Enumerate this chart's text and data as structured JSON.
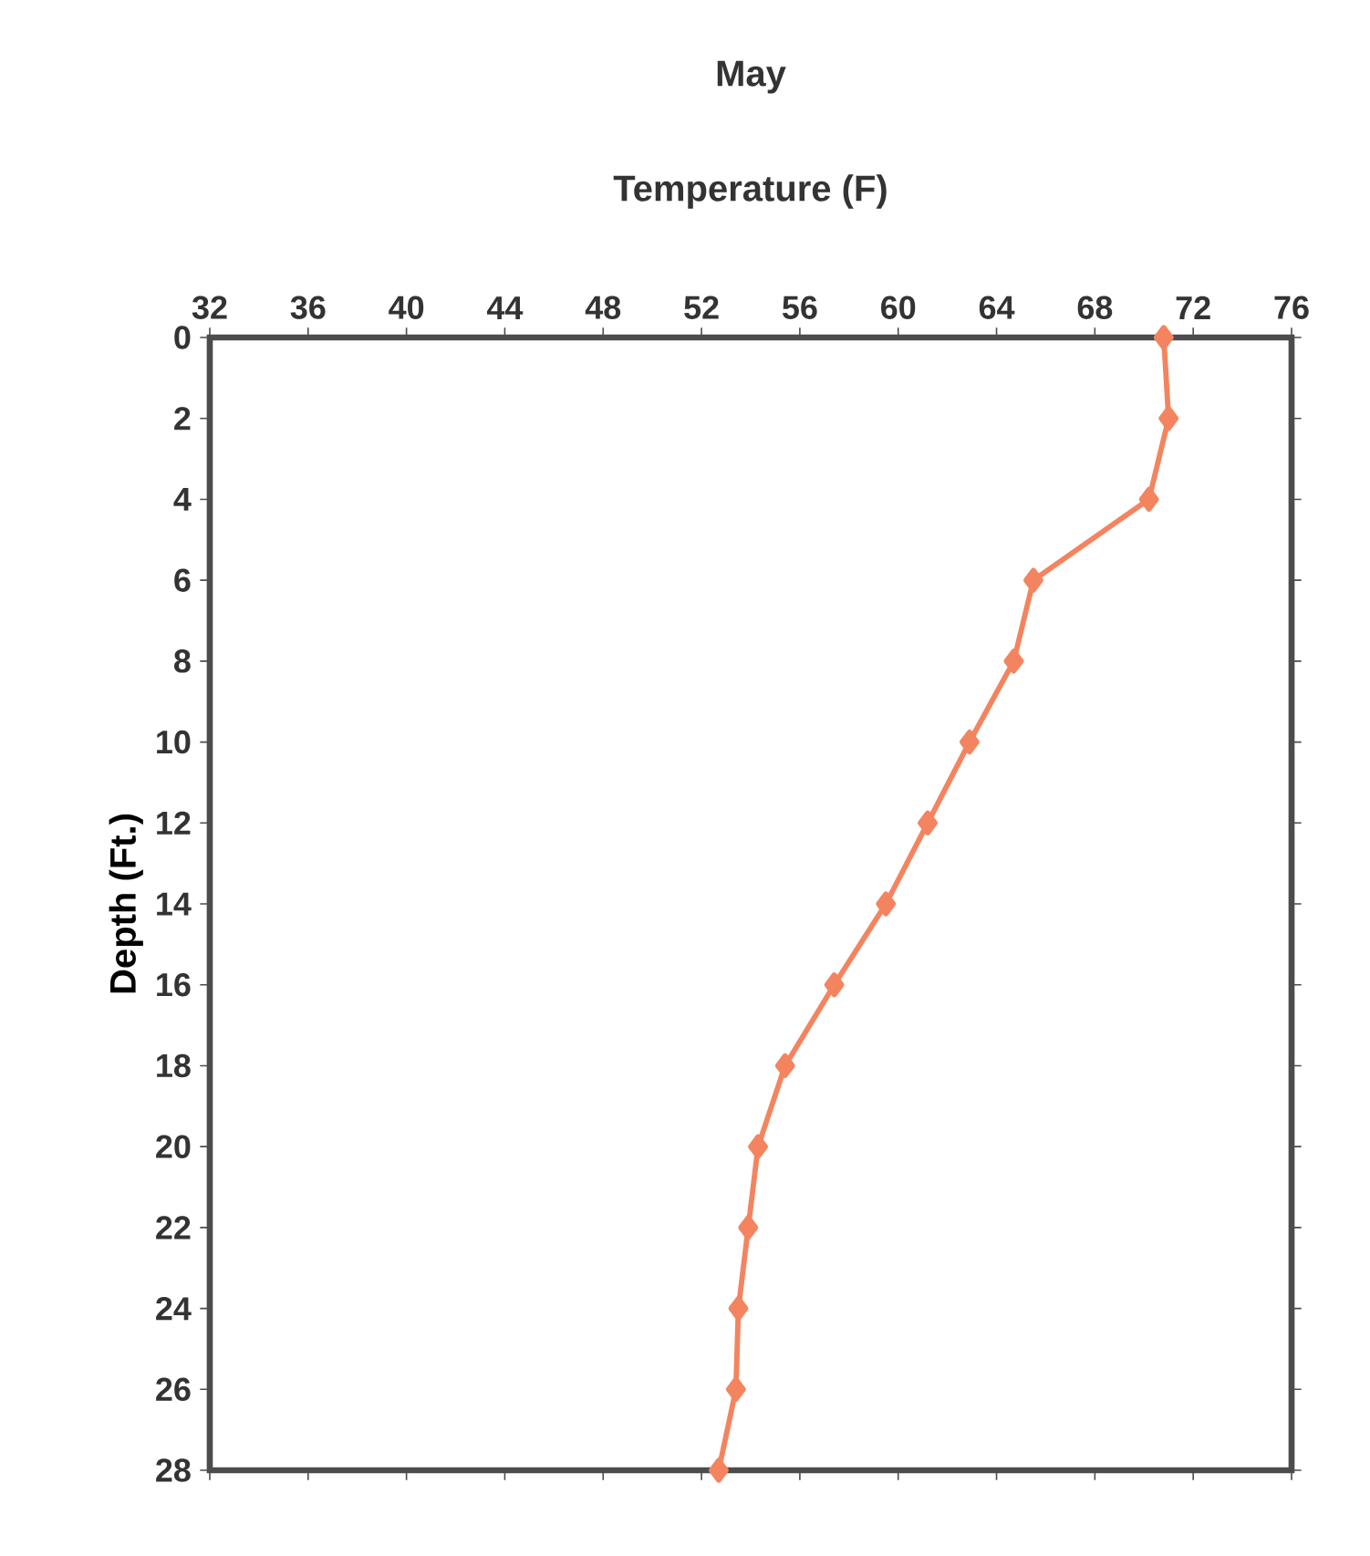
{
  "chart_data": {
    "type": "line",
    "title": "May",
    "xlabel": "Temperature (F)",
    "ylabel": "Depth (Ft.)",
    "x": [
      70.8,
      71.0,
      70.2,
      65.5,
      64.7,
      62.9,
      61.2,
      59.5,
      57.4,
      55.4,
      54.3,
      53.9,
      53.5,
      53.4,
      52.7
    ],
    "values": [
      0,
      2,
      4,
      6,
      8,
      10,
      12,
      14,
      16,
      18,
      20,
      22,
      24,
      26,
      28
    ],
    "color": "#f4845f",
    "marker": "diamond",
    "line_style": "solid",
    "grid": false,
    "xlim": [
      32,
      76
    ],
    "xticks": [
      32,
      36,
      40,
      44,
      48,
      52,
      56,
      60,
      64,
      68,
      72,
      76
    ],
    "ylim": [
      28,
      0
    ],
    "yticks": [
      0,
      2,
      4,
      6,
      8,
      10,
      12,
      14,
      16,
      18,
      20,
      22,
      24,
      26,
      28
    ]
  }
}
